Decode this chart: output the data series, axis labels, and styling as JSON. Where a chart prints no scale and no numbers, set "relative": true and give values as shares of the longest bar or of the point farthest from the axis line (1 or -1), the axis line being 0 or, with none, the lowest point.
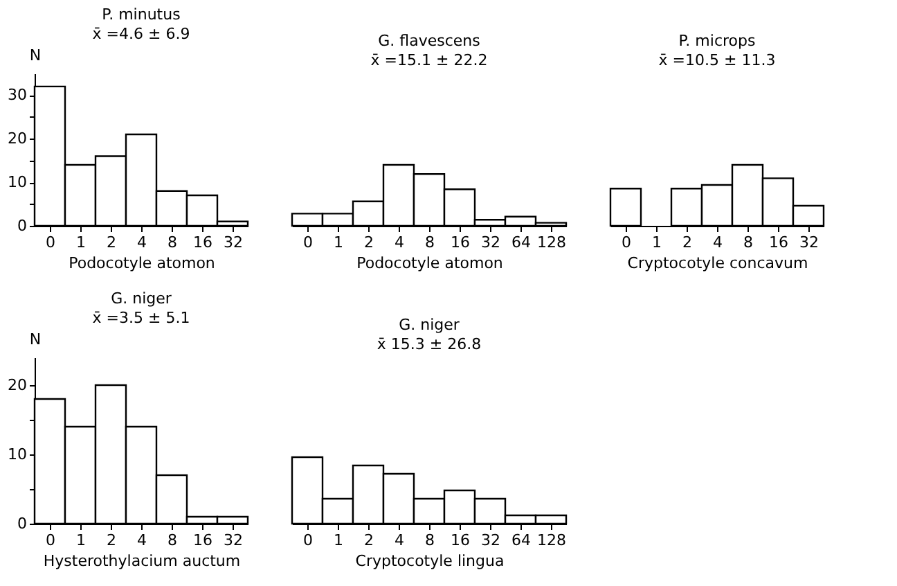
{
  "chart_data": [
    {
      "type": "bar",
      "title": "P. minutus",
      "subtitle": "x̄ =4.6 ± 6.9",
      "xlabel": "Podocotyle atomon",
      "ylabel": "N",
      "categories": [
        "0",
        "1",
        "2",
        "4",
        "8",
        "16",
        "32"
      ],
      "values": [
        32,
        14,
        16,
        21,
        8,
        7,
        1
      ],
      "color": "#ffffff",
      "ylim": [
        0,
        35
      ],
      "yticks": [
        0,
        {
          "value": 5,
          "label": null
        },
        10,
        {
          "value": 15,
          "label": null
        },
        20,
        {
          "value": 25,
          "label": null
        },
        30
      ],
      "grid": false
    },
    {
      "type": "bar",
      "title": "G. flavescens",
      "subtitle": "x̄ =15.1 ± 22.2",
      "xlabel": "Podocotyle atomon",
      "categories": [
        "0",
        "1",
        "2",
        "4",
        "8",
        "16",
        "32",
        "64",
        "128"
      ],
      "values": [
        0.2,
        0.2,
        0.4,
        1,
        0.85,
        0.6,
        0.1,
        0.15,
        0.05
      ],
      "relative": true,
      "color": "#ffffff",
      "tick_labels": "x",
      "grid": false
    },
    {
      "type": "bar",
      "title": "P. microps",
      "subtitle": "x̄ =10.5 ± 11.3",
      "xlabel": "Cryptocotyle concavum",
      "categories": [
        "0",
        "1",
        "2",
        "4",
        "8",
        "16",
        "32"
      ],
      "values": [
        0.61,
        null,
        0.61,
        0.67,
        1,
        0.78,
        0.33
      ],
      "relative": true,
      "color": "#ffffff",
      "tick_labels": "x",
      "grid": false
    },
    {
      "type": "bar",
      "title": "G. niger",
      "subtitle": "x̄ =3.5 ± 5.1",
      "xlabel": "Hysterothylacium auctum",
      "ylabel": "N",
      "categories": [
        "0",
        "1",
        "2",
        "4",
        "8",
        "16",
        "32"
      ],
      "values": [
        18,
        14,
        20,
        14,
        7,
        1,
        1
      ],
      "color": "#ffffff",
      "ylim": [
        0,
        24
      ],
      "yticks": [
        0,
        {
          "value": 5,
          "label": null
        },
        10,
        {
          "value": 15,
          "label": null
        },
        20
      ],
      "grid": false
    },
    {
      "type": "bar",
      "title": "G. niger",
      "subtitle": "x̄ 15.3 ± 26.8",
      "xlabel": "Cryptocotyle lingua",
      "categories": [
        "0",
        "1",
        "2",
        "4",
        "8",
        "16",
        "32",
        "64",
        "128"
      ],
      "values": [
        1,
        0.375,
        0.875,
        0.75,
        0.375,
        0.5,
        0.375,
        0.125,
        0.125
      ],
      "relative": true,
      "color": "#ffffff",
      "tick_labels": "x",
      "grid": false
    }
  ]
}
